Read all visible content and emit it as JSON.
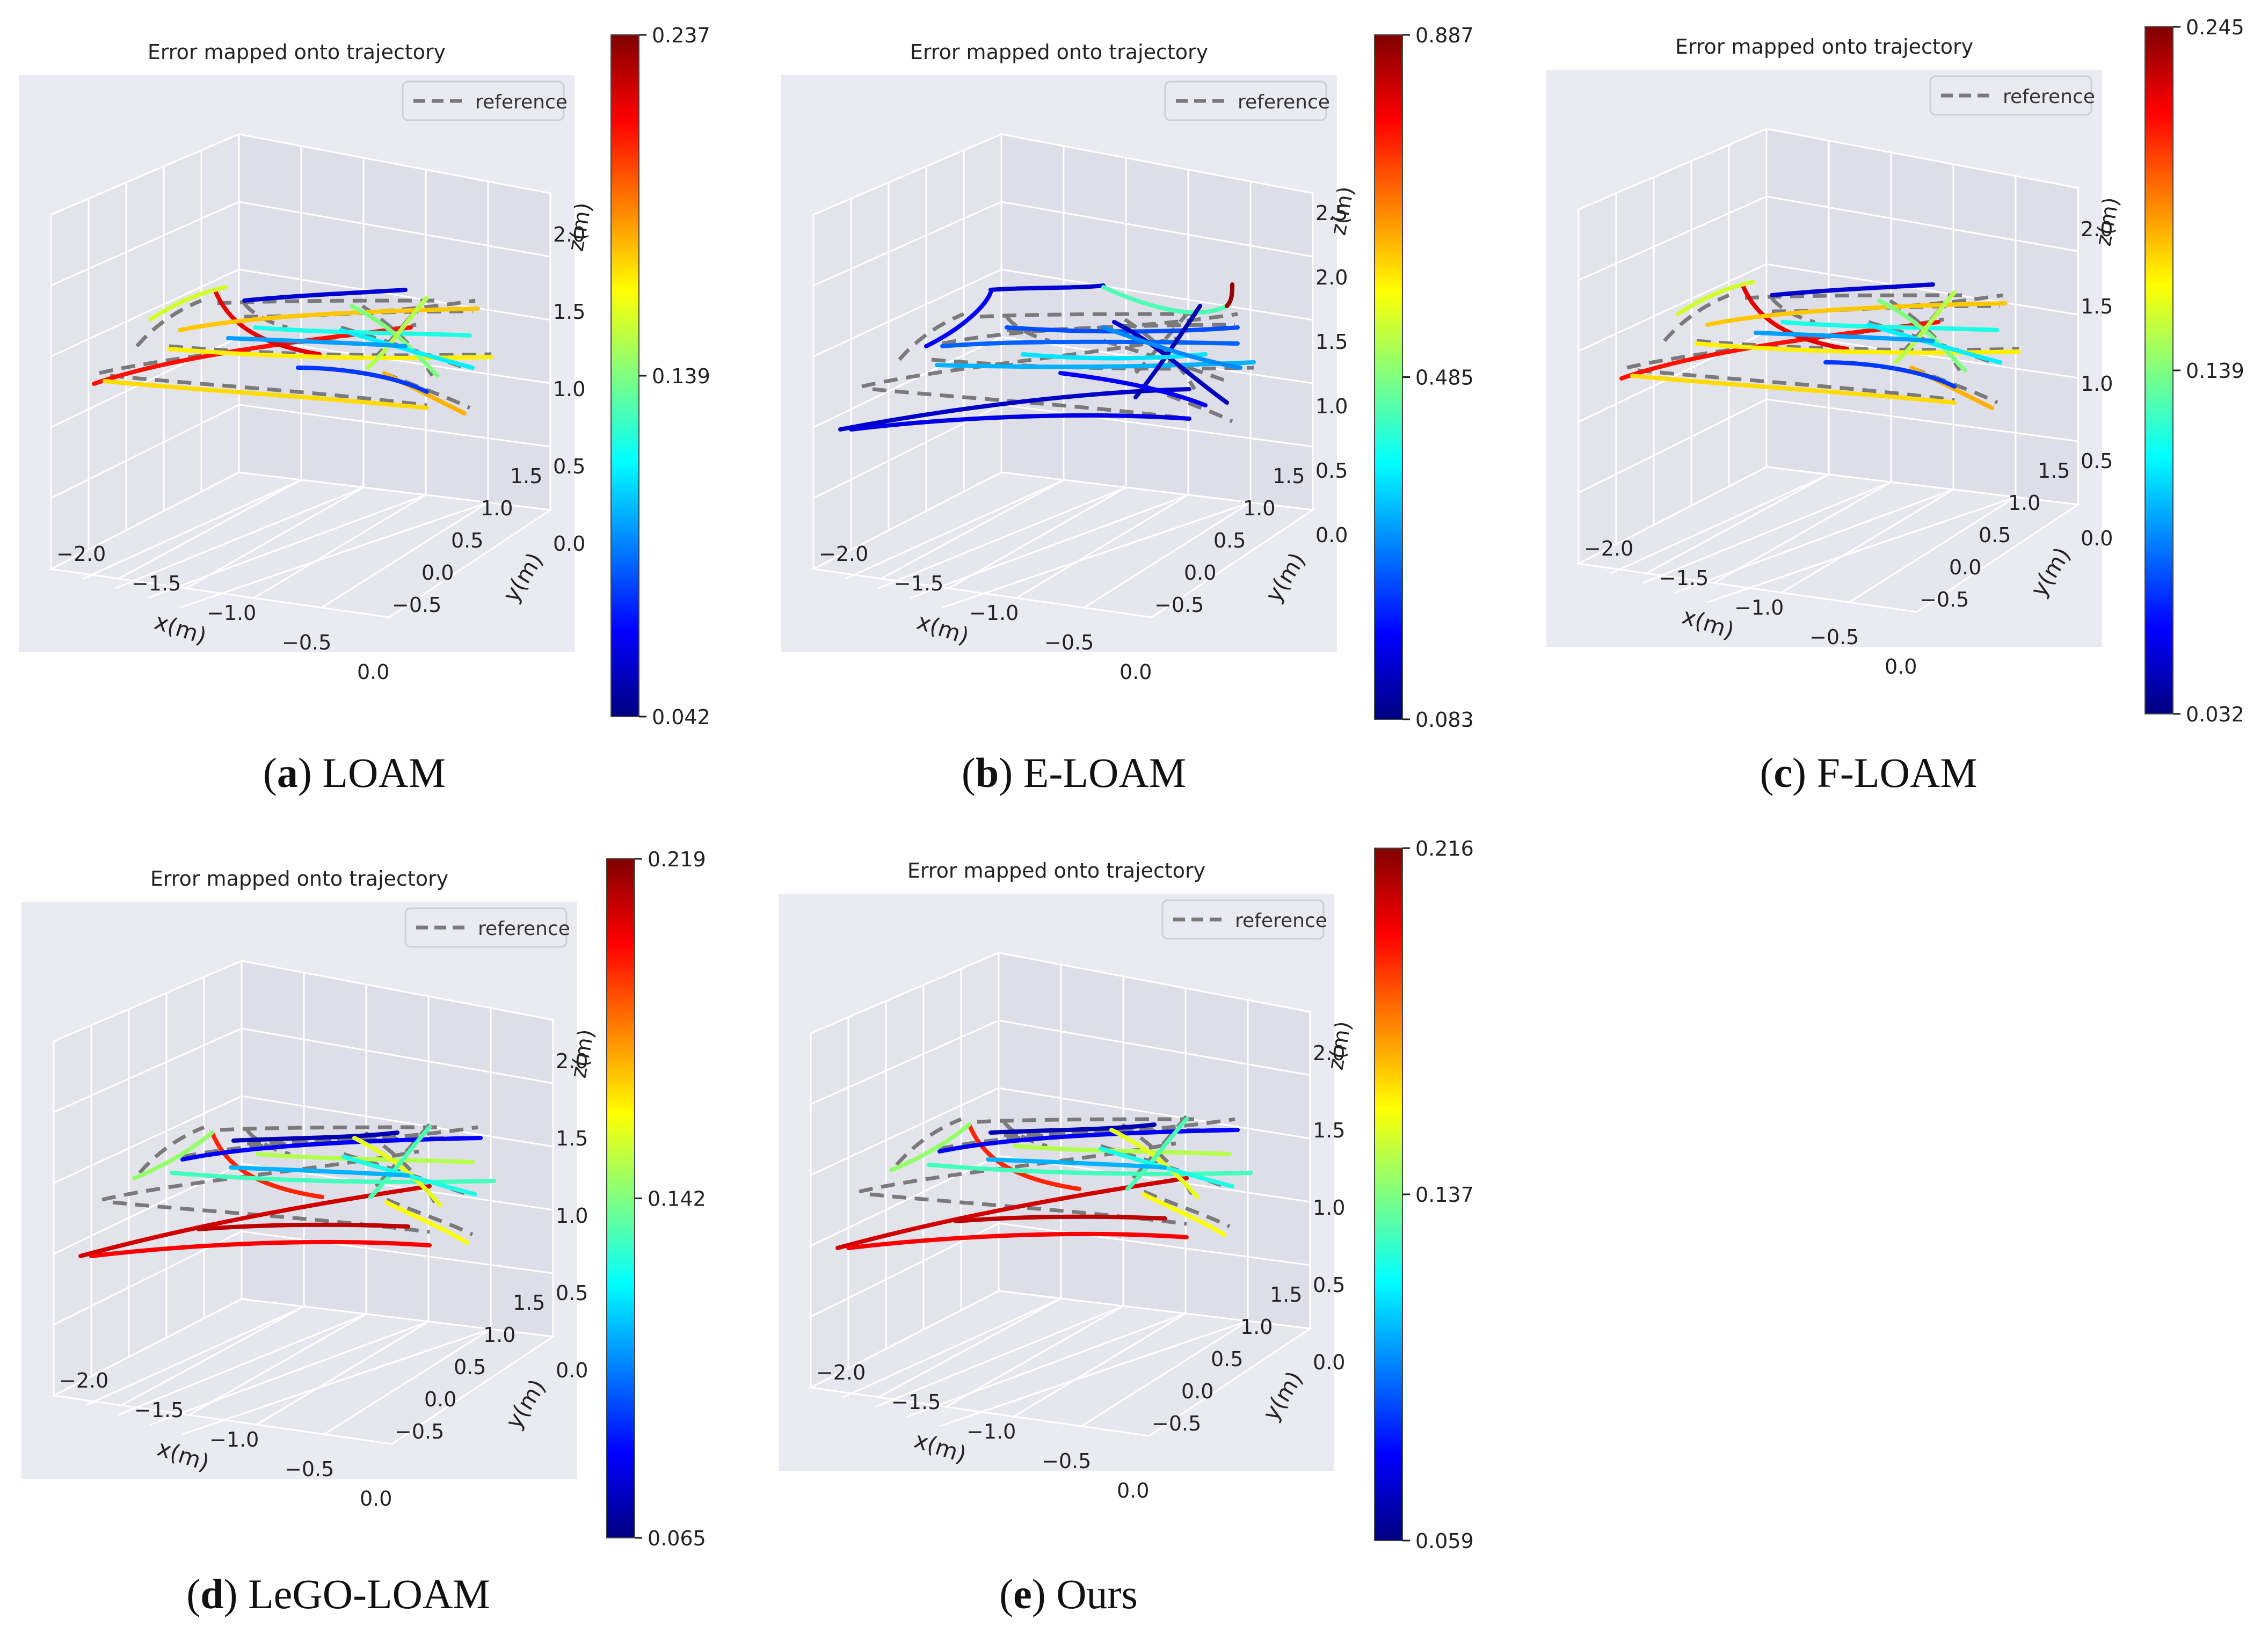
{
  "figure": {
    "panels": [
      {
        "letter": "a",
        "method": "LOAM",
        "title": "Error mapped onto trajectory",
        "legend": "reference",
        "cmin": "0.042",
        "cmid": "0.139",
        "cmax": "0.237",
        "scheme": "A",
        "zticks": [
          "2.0",
          "1.5",
          "1.0",
          "0.5",
          "0.0"
        ]
      },
      {
        "letter": "b",
        "method": "E-LOAM",
        "title": "Error mapped onto trajectory",
        "legend": "reference",
        "cmin": "0.083",
        "cmid": "0.485",
        "cmax": "0.887",
        "scheme": "B",
        "zticks": [
          "2.5",
          "2.0",
          "1.5",
          "1.0",
          "0.5",
          "0.0"
        ]
      },
      {
        "letter": "c",
        "method": "F-LOAM",
        "title": "Error mapped onto trajectory",
        "legend": "reference",
        "cmin": "0.032",
        "cmid": "0.139",
        "cmax": "0.245",
        "scheme": "A",
        "zticks": [
          "2.0",
          "1.5",
          "1.0",
          "0.5",
          "0.0"
        ]
      },
      {
        "letter": "d",
        "method": "LeGO-LOAM",
        "title": "Error mapped onto trajectory",
        "legend": "reference",
        "cmin": "0.065",
        "cmid": "0.142",
        "cmax": "0.219",
        "scheme": "D",
        "zticks": [
          "2.0",
          "1.5",
          "1.0",
          "0.5",
          "0.0"
        ]
      },
      {
        "letter": "e",
        "method": "Ours",
        "title": "Error mapped onto trajectory",
        "legend": "reference",
        "cmin": "0.059",
        "cmid": "0.137",
        "cmax": "0.216",
        "scheme": "D",
        "zticks": [
          "2.0",
          "1.5",
          "1.0",
          "0.5",
          "0.0"
        ]
      }
    ],
    "xticks": [
      "−2.0",
      "−1.5",
      "−1.0",
      "−0.5",
      "0.0"
    ],
    "yticks": [
      "1.5",
      "1.0",
      "0.5",
      "0.0",
      "−0.5"
    ],
    "xlabel": "x(m)",
    "ylabel": "y(m)",
    "zlabel": "z(m)"
  },
  "chart_data": [
    {
      "type": "line",
      "subtype": "3d-trajectory",
      "title": "Error mapped onto trajectory",
      "caption": "(a) LOAM",
      "xlabel": "x(m)",
      "ylabel": "y(m)",
      "zlabel": "z(m)",
      "series": [
        {
          "name": "reference",
          "style": "dashed"
        }
      ],
      "colorbar": {
        "min": 0.042,
        "mid": 0.139,
        "max": 0.237
      }
    },
    {
      "type": "line",
      "subtype": "3d-trajectory",
      "title": "Error mapped onto trajectory",
      "caption": "(b) E-LOAM",
      "xlabel": "x(m)",
      "ylabel": "y(m)",
      "zlabel": "z(m)",
      "series": [
        {
          "name": "reference",
          "style": "dashed"
        }
      ],
      "colorbar": {
        "min": 0.083,
        "mid": 0.485,
        "max": 0.887
      }
    },
    {
      "type": "line",
      "subtype": "3d-trajectory",
      "title": "Error mapped onto trajectory",
      "caption": "(c) F-LOAM",
      "xlabel": "x(m)",
      "ylabel": "y(m)",
      "zlabel": "z(m)",
      "series": [
        {
          "name": "reference",
          "style": "dashed"
        }
      ],
      "colorbar": {
        "min": 0.032,
        "mid": 0.139,
        "max": 0.245
      }
    },
    {
      "type": "line",
      "subtype": "3d-trajectory",
      "title": "Error mapped onto trajectory",
      "caption": "(d) LeGO-LOAM",
      "xlabel": "x(m)",
      "ylabel": "y(m)",
      "zlabel": "z(m)",
      "series": [
        {
          "name": "reference",
          "style": "dashed"
        }
      ],
      "colorbar": {
        "min": 0.065,
        "mid": 0.142,
        "max": 0.219
      }
    },
    {
      "type": "line",
      "subtype": "3d-trajectory",
      "title": "Error mapped onto trajectory",
      "caption": "(e) Ours",
      "xlabel": "x(m)",
      "ylabel": "y(m)",
      "zlabel": "z(m)",
      "series": [
        {
          "name": "reference",
          "style": "dashed"
        }
      ],
      "colorbar": {
        "min": 0.059,
        "mid": 0.137,
        "max": 0.216
      }
    }
  ]
}
